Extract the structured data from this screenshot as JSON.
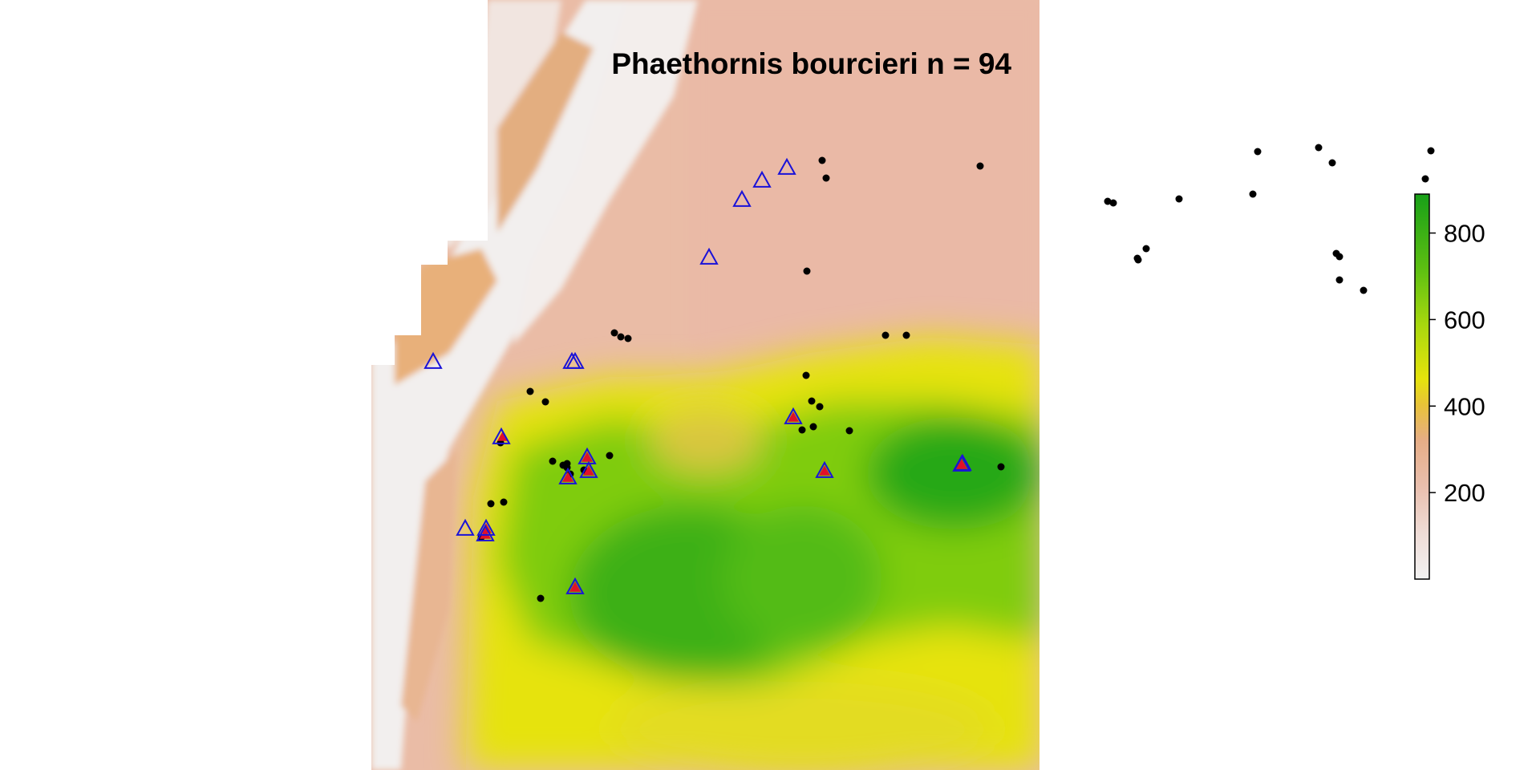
{
  "map": {
    "title": "Phaethornis bourcieri n = 94",
    "colors": {
      "green_dark": "#22a418",
      "green": "#7fcc10",
      "yellow": "#e6e30c",
      "tan": "#e8b07a",
      "salmon": "#eabca6",
      "pink_light": "#f2d6cd",
      "white_ridge": "#f2f2f2",
      "point_black": "#000000",
      "triangle_blue": "#1a12d8",
      "triangle_red": "#e0102a"
    }
  },
  "legend": {
    "title": "",
    "scale_range": [
      0,
      890
    ],
    "ticks": [
      {
        "value": 800,
        "label": "800"
      },
      {
        "value": 600,
        "label": "600"
      },
      {
        "value": 400,
        "label": "400"
      },
      {
        "value": 200,
        "label": "200"
      }
    ],
    "colors_low_to_high": [
      "#f2f2f2",
      "#ecc8bd",
      "#e8b07a",
      "#e6e30c",
      "#7fcc10",
      "#22a418"
    ]
  },
  "points": {
    "occurrence_dots": [
      [
        1025,
        200
      ],
      [
        1030,
        222
      ],
      [
        1222,
        207
      ],
      [
        1006,
        338
      ],
      [
        1104,
        418
      ],
      [
        1130,
        418
      ],
      [
        766,
        415
      ],
      [
        774,
        420
      ],
      [
        783,
        422
      ],
      [
        1005,
        468
      ],
      [
        1012,
        500
      ],
      [
        1022,
        507
      ],
      [
        1000,
        536
      ],
      [
        1014,
        532
      ],
      [
        1059,
        537
      ],
      [
        661,
        488
      ],
      [
        680,
        501
      ],
      [
        624,
        552
      ],
      [
        689,
        575
      ],
      [
        702,
        580
      ],
      [
        707,
        583
      ],
      [
        707,
        578
      ],
      [
        711,
        591
      ],
      [
        728,
        586
      ],
      [
        760,
        568
      ],
      [
        1248,
        582
      ],
      [
        612,
        628
      ],
      [
        628,
        626
      ],
      [
        600,
        670
      ],
      [
        674,
        746
      ],
      [
        1381,
        251
      ],
      [
        1388,
        253
      ],
      [
        1470,
        248
      ],
      [
        1562,
        242
      ],
      [
        1568,
        189
      ],
      [
        1644,
        184
      ],
      [
        1661,
        203
      ],
      [
        1784,
        188
      ],
      [
        1777,
        223
      ],
      [
        1419,
        324
      ],
      [
        1429,
        310
      ],
      [
        1666,
        316
      ],
      [
        1670,
        320
      ],
      [
        1670,
        349
      ],
      [
        1700,
        362
      ],
      [
        1418,
        322
      ]
    ],
    "triangles_blue": [
      [
        540,
        452
      ],
      [
        717,
        452
      ],
      [
        713,
        452
      ],
      [
        625,
        546
      ],
      [
        989,
        521
      ],
      [
        1028,
        588
      ],
      [
        732,
        571
      ],
      [
        708,
        596
      ],
      [
        734,
        588
      ],
      [
        580,
        660
      ],
      [
        606,
        660
      ],
      [
        605,
        667
      ],
      [
        717,
        733
      ],
      [
        1199,
        580
      ],
      [
        1200,
        579
      ],
      [
        884,
        322
      ],
      [
        925,
        250
      ],
      [
        950,
        226
      ],
      [
        981,
        210
      ]
    ],
    "triangles_red": [
      [
        627,
        545
      ],
      [
        989,
        521
      ],
      [
        1028,
        588
      ],
      [
        732,
        571
      ],
      [
        708,
        596
      ],
      [
        734,
        588
      ],
      [
        606,
        660
      ],
      [
        605,
        667
      ],
      [
        717,
        733
      ],
      [
        1199,
        580
      ]
    ]
  }
}
